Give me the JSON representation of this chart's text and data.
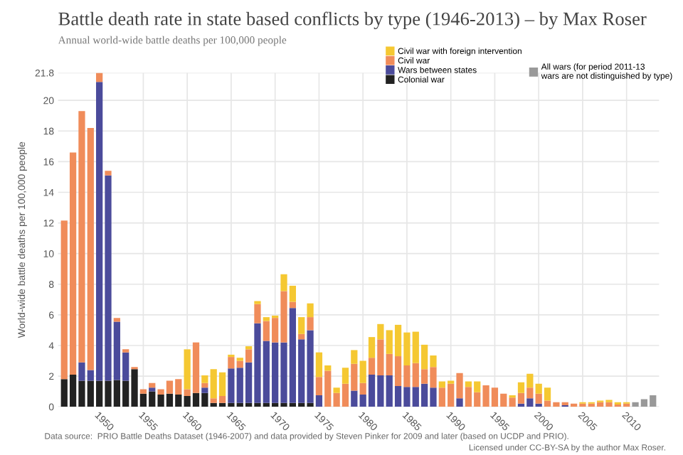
{
  "chart_data": {
    "type": "bar",
    "stacked": true,
    "title": "Battle death rate in state based conflicts by type (1946-2013) – by Max Roser",
    "subtitle": "Annual world-wide battle deaths per 100,000 people",
    "ylabel": "World-wide battle deaths per 100,000 people",
    "x": [
      1946,
      1947,
      1948,
      1949,
      1950,
      1951,
      1952,
      1953,
      1954,
      1955,
      1956,
      1957,
      1958,
      1959,
      1960,
      1961,
      1962,
      1963,
      1964,
      1965,
      1966,
      1967,
      1968,
      1969,
      1970,
      1971,
      1972,
      1973,
      1974,
      1975,
      1976,
      1977,
      1978,
      1979,
      1980,
      1981,
      1982,
      1983,
      1984,
      1985,
      1986,
      1987,
      1988,
      1989,
      1990,
      1991,
      1992,
      1993,
      1994,
      1995,
      1996,
      1997,
      1998,
      1999,
      2000,
      2001,
      2002,
      2003,
      2004,
      2005,
      2006,
      2007,
      2008,
      2009,
      2010,
      2011,
      2012,
      2013
    ],
    "series": [
      {
        "name": "Colonial war",
        "color": "#222222",
        "values": [
          1.8,
          2.1,
          1.7,
          1.7,
          1.7,
          1.7,
          1.75,
          1.7,
          2.45,
          0.85,
          1.0,
          0.8,
          0.85,
          0.8,
          0.7,
          0.9,
          0.9,
          0.25,
          0.25,
          0.25,
          0.25,
          0.25,
          0.25,
          0.25,
          0.25,
          0.25,
          0.25,
          0.25,
          0.25,
          0,
          0,
          0,
          0,
          0,
          0,
          0,
          0,
          0,
          0,
          0,
          0,
          0,
          0,
          0,
          0,
          0,
          0,
          0,
          0,
          0,
          0,
          0,
          0,
          0,
          0,
          0,
          0,
          0,
          0,
          0,
          0,
          0,
          0,
          0,
          0,
          null,
          null,
          null
        ]
      },
      {
        "name": "Wars between states",
        "color": "#4b4b9b",
        "values": [
          0,
          0,
          1.2,
          0.7,
          19.5,
          13.4,
          3.8,
          1.85,
          0,
          0,
          0.25,
          0,
          0,
          0,
          0,
          0,
          0.35,
          0,
          0,
          2.25,
          2.3,
          2.65,
          5.2,
          4.05,
          3.95,
          3.95,
          6.2,
          4.15,
          4.75,
          0.75,
          0,
          0,
          0,
          1.05,
          0.8,
          2.1,
          2.05,
          2.05,
          1.35,
          1.3,
          1.3,
          1.5,
          1.25,
          0,
          0,
          0.55,
          0,
          0,
          0,
          0,
          0,
          0,
          0.2,
          0.55,
          0.2,
          0,
          0,
          0.1,
          0,
          0,
          0,
          0,
          0,
          0,
          0,
          null,
          null,
          null
        ]
      },
      {
        "name": "Civil war",
        "color": "#f08c5a",
        "values": [
          10.35,
          14.5,
          16.4,
          15.8,
          0.6,
          0.3,
          0.25,
          0.2,
          0.15,
          0.3,
          0.3,
          0.35,
          0.85,
          1.0,
          0.45,
          3.3,
          0.3,
          0.3,
          0.45,
          0.75,
          0.45,
          0.85,
          1.25,
          1.3,
          1.6,
          3.35,
          0.4,
          0.35,
          0.85,
          1.2,
          2.35,
          0.9,
          1.5,
          1.75,
          0.75,
          1.1,
          2.35,
          1.4,
          1.95,
          1.4,
          1.55,
          0.95,
          1.35,
          1.25,
          1.5,
          1.65,
          1.3,
          0.95,
          1.4,
          1.25,
          0.85,
          0.6,
          0.7,
          0.7,
          0.65,
          0.4,
          0.3,
          0.2,
          0.2,
          0.2,
          0.2,
          0.3,
          0.3,
          0.15,
          0.2,
          null,
          null,
          null
        ]
      },
      {
        "name": "Civil war with foreign intervention",
        "color": "#f5c832",
        "values": [
          0,
          0,
          0,
          0,
          0,
          0,
          0,
          0,
          0,
          0,
          0,
          0,
          0,
          0,
          2.6,
          0,
          0.5,
          1.9,
          1.55,
          0.15,
          0.2,
          0.2,
          0.2,
          0.25,
          0.15,
          1.1,
          1.05,
          1.1,
          0.9,
          1.6,
          0.35,
          0.35,
          1.05,
          0.9,
          1.45,
          1.35,
          1.0,
          1.55,
          2.05,
          2.15,
          2.05,
          1.6,
          0.75,
          0.4,
          0.2,
          0,
          0.35,
          0.7,
          0,
          0,
          0,
          0.15,
          0.7,
          0.9,
          0.65,
          0.85,
          0,
          0,
          0,
          0.1,
          0.1,
          0.1,
          0.15,
          0.15,
          0.1,
          null,
          null,
          null
        ]
      },
      {
        "name": "All wars (for period 2011-13\nwars are not distinguished by type)",
        "color": "#999999",
        "values": [
          null,
          null,
          null,
          null,
          null,
          null,
          null,
          null,
          null,
          null,
          null,
          null,
          null,
          null,
          null,
          null,
          null,
          null,
          null,
          null,
          null,
          null,
          null,
          null,
          null,
          null,
          null,
          null,
          null,
          null,
          null,
          null,
          null,
          null,
          null,
          null,
          null,
          null,
          null,
          null,
          null,
          null,
          null,
          null,
          null,
          null,
          null,
          null,
          null,
          null,
          null,
          null,
          null,
          null,
          null,
          null,
          null,
          null,
          null,
          null,
          null,
          null,
          null,
          null,
          null,
          0.3,
          0.5,
          0.75
        ]
      }
    ],
    "xlim": [
      1945.3,
      2013.7
    ],
    "xticks": [
      1950,
      1955,
      1960,
      1965,
      1970,
      1975,
      1980,
      1985,
      1990,
      1995,
      2000,
      2005,
      2010
    ],
    "ylim": [
      0,
      21.8
    ],
    "yticks": [
      0,
      2,
      4,
      6,
      8,
      10,
      12,
      14,
      16,
      18,
      20,
      21.8
    ],
    "grid": true,
    "legend": "top right",
    "annotations": [
      "Data source:  PRIO Battle Deaths Dataset (1946-2007) and data provided by Steven Pinker for 2009 and later (based on UCDP and PRIO).",
      "Licensed under CC-BY-SA by the author Max Roser."
    ]
  }
}
